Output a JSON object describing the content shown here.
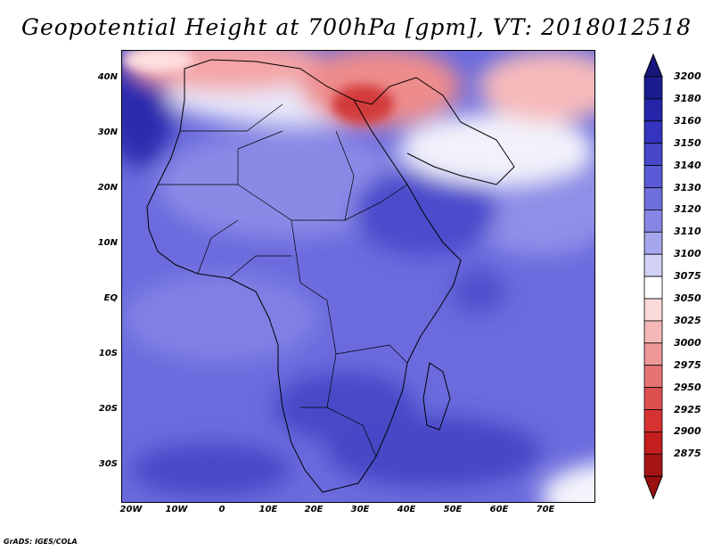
{
  "title": "Geopotential Height at 700hPa [gpm], VT: 2018012518",
  "credit": "GrADS: IGES/COLA",
  "lat_labels": [
    "40N",
    "30N",
    "20N",
    "10N",
    "EQ",
    "10S",
    "20S",
    "30S"
  ],
  "lon_labels": [
    "20W",
    "10W",
    "0",
    "10E",
    "20E",
    "30E",
    "40E",
    "50E",
    "60E",
    "70E"
  ],
  "colorbar": {
    "levels": [
      "3200",
      "3180",
      "3160",
      "3150",
      "3140",
      "3130",
      "3120",
      "3110",
      "3100",
      "3075",
      "3050",
      "3025",
      "3000",
      "2975",
      "2950",
      "2925",
      "2900",
      "2875"
    ],
    "colors": [
      "#1b1b8f",
      "#2525aa",
      "#3434bf",
      "#4747cc",
      "#5a5ad6",
      "#6f6fdc",
      "#8686e4",
      "#a6a6ee",
      "#d2d2f6",
      "#ffffff",
      "#fadada",
      "#f4b8b8",
      "#ee9898",
      "#e67474",
      "#de5050",
      "#d63232",
      "#c41e1e",
      "#a61414"
    ],
    "top_cap_color": "#16167a",
    "bottom_cap_color": "#9a1010"
  }
}
